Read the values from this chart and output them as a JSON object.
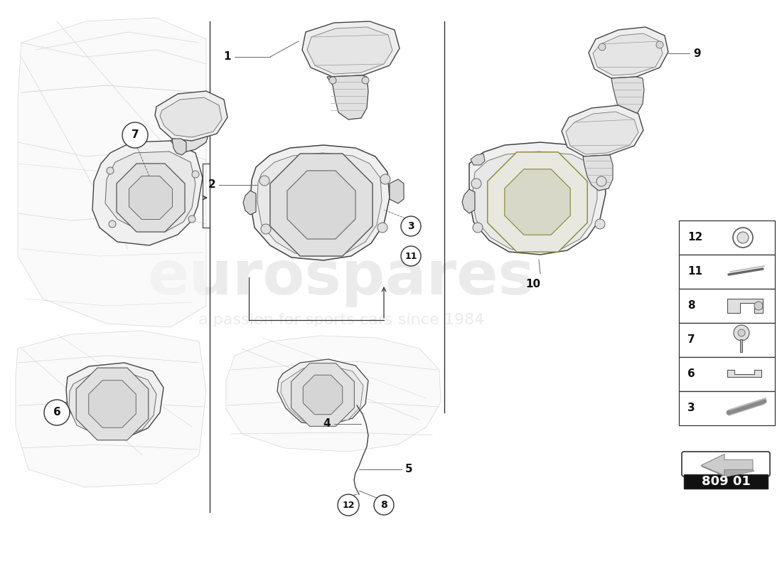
{
  "bg_color": "#ffffff",
  "catalog_number": "809 01",
  "line_color": "#333333",
  "part_line_color": "#444444",
  "watermark_color": "#c8c8c8",
  "small_parts_labels": [
    "12",
    "11",
    "8",
    "7",
    "6",
    "3"
  ],
  "separator_color": "#555555",
  "leader_color": "#666666",
  "body_bg": "#f5f5f5",
  "body_line": "#bbbbbb",
  "part_fill": "#f0f0f0",
  "part_dark": "#e0e0e0",
  "part_darker": "#c8c8c8",
  "inner_fill": "#e8e8e8"
}
